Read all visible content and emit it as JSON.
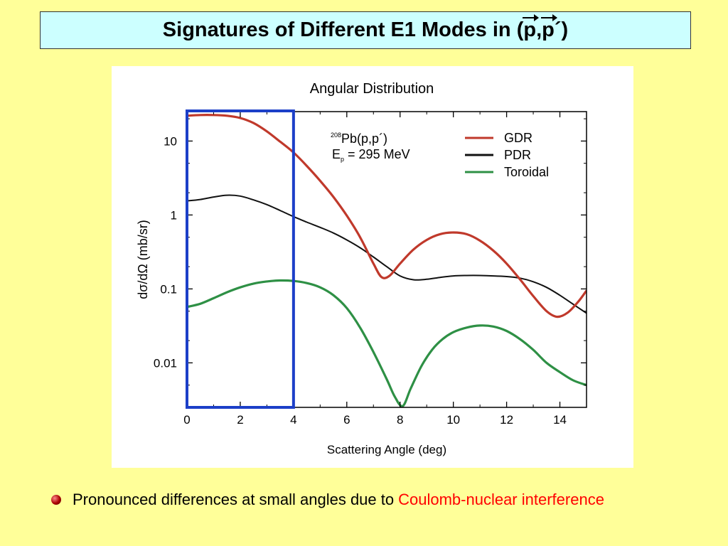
{
  "slide": {
    "title_prefix": "Signatures of Different E1 Modes in (",
    "title_p1": "p",
    "title_sep": ",",
    "title_p2": "p",
    "title_suffix": "´)",
    "bullet_text": "Pronounced differences at small angles due to",
    "bullet_highlight": "Coulomb-nuclear interference"
  },
  "colors": {
    "background": "#ffff99",
    "title_box": "#ccffff",
    "highlight": "#ff0000",
    "gdr": "#c0392b",
    "pdr": "#111111",
    "toroidal": "#2e9045",
    "selection_box": "#1c3fc8"
  },
  "chart_data": {
    "type": "line",
    "title": "Angular Distribution",
    "xlabel": "Scattering Angle (deg)",
    "ylabel": "dσ/dΩ (mb/sr)",
    "xlim": [
      0,
      15
    ],
    "ylim": [
      0.0025,
      25
    ],
    "log_y": true,
    "x_ticks": [
      0,
      2,
      4,
      6,
      8,
      10,
      12,
      14
    ],
    "y_ticks": [
      0.01,
      0.1,
      1,
      10
    ],
    "y_tick_labels": [
      "0.01",
      "0.1",
      "1",
      "10"
    ],
    "annotation": {
      "sup": "208",
      "reaction": "Pb(p,p´)",
      "energy_E": "E",
      "energy_sub": "p",
      "energy_val": " = 295 MeV"
    },
    "legend_position": "top-right",
    "highlight_region_x": [
      0,
      4
    ],
    "series": [
      {
        "name": "GDR",
        "x": [
          0,
          0.5,
          1,
          1.5,
          2,
          2.5,
          3,
          3.5,
          4,
          4.5,
          5,
          5.5,
          6,
          6.5,
          7,
          7.3,
          7.6,
          8,
          8.5,
          9,
          9.5,
          10,
          10.5,
          11,
          11.5,
          12,
          12.5,
          13,
          13.5,
          13.9,
          14.3,
          14.7,
          15
        ],
        "y": [
          22,
          22.5,
          22.5,
          22,
          20.5,
          17.5,
          13.5,
          9.8,
          7.0,
          4.6,
          2.9,
          1.75,
          0.98,
          0.5,
          0.22,
          0.145,
          0.15,
          0.22,
          0.34,
          0.46,
          0.55,
          0.58,
          0.55,
          0.45,
          0.33,
          0.22,
          0.135,
          0.08,
          0.05,
          0.042,
          0.048,
          0.068,
          0.095
        ]
      },
      {
        "name": "PDR",
        "x": [
          0,
          0.5,
          1,
          1.5,
          2,
          2.5,
          3,
          3.5,
          4,
          4.5,
          5,
          5.5,
          6,
          6.5,
          7,
          7.5,
          8,
          8.5,
          9,
          9.5,
          10,
          10.5,
          11,
          11.5,
          12,
          12.5,
          13,
          13.5,
          14,
          14.5,
          15
        ],
        "y": [
          1.55,
          1.62,
          1.75,
          1.85,
          1.8,
          1.6,
          1.38,
          1.15,
          0.95,
          0.8,
          0.68,
          0.57,
          0.46,
          0.36,
          0.27,
          0.2,
          0.15,
          0.133,
          0.135,
          0.143,
          0.15,
          0.152,
          0.152,
          0.15,
          0.147,
          0.14,
          0.125,
          0.105,
          0.082,
          0.062,
          0.047
        ]
      },
      {
        "name": "Toroidal",
        "x": [
          0,
          0.5,
          1,
          1.5,
          2,
          2.5,
          3,
          3.5,
          4,
          4.5,
          5,
          5.5,
          6,
          6.5,
          7,
          7.5,
          7.8,
          8.1,
          8.4,
          8.8,
          9.2,
          9.6,
          10,
          10.5,
          11,
          11.5,
          12,
          12.5,
          13,
          13.5,
          14,
          14.5,
          15
        ],
        "y": [
          0.057,
          0.063,
          0.075,
          0.09,
          0.105,
          0.118,
          0.126,
          0.13,
          0.128,
          0.12,
          0.105,
          0.082,
          0.055,
          0.03,
          0.014,
          0.006,
          0.0035,
          0.0026,
          0.0045,
          0.009,
          0.015,
          0.021,
          0.026,
          0.03,
          0.032,
          0.031,
          0.027,
          0.021,
          0.015,
          0.01,
          0.0075,
          0.0058,
          0.005
        ]
      }
    ]
  }
}
